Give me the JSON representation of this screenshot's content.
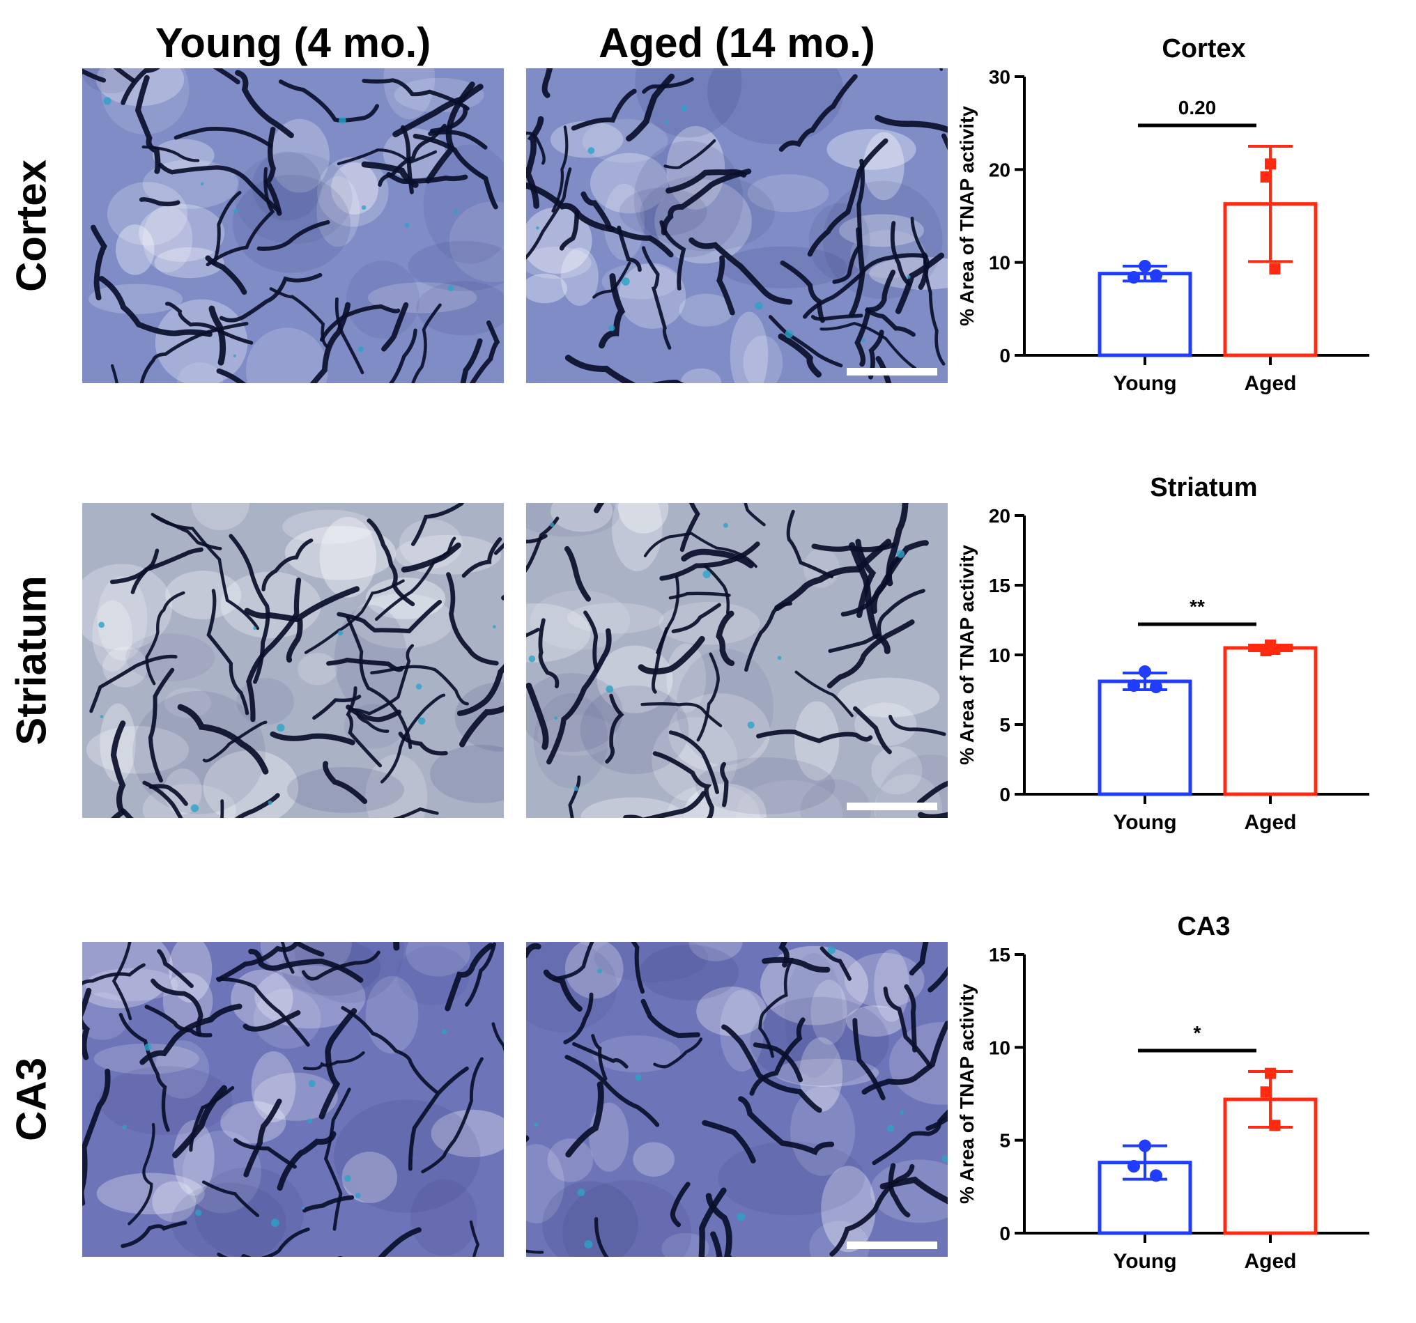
{
  "column_headers": {
    "young": "Young (4 mo.)",
    "aged": "Aged (14 mo.)"
  },
  "row_headers": [
    "Cortex",
    "Striatum",
    "CA3"
  ],
  "panels": [
    {
      "region": "Cortex",
      "tissue_tint": "#7f8cc6",
      "vessel_density": 0.55,
      "scale_bar": true
    },
    {
      "region": "Striatum",
      "tissue_tint": "#aab2c6",
      "vessel_density": 0.65,
      "scale_bar": true
    },
    {
      "region": "CA3",
      "tissue_tint": "#6d74b8",
      "vessel_density": 0.4,
      "scale_bar": true
    }
  ],
  "colors": {
    "young": "#1f3cff",
    "aged": "#ff2a10",
    "vessel": "#0a0f2a",
    "stat_bar": "#000000"
  },
  "chart_data": [
    {
      "type": "bar",
      "title": "Cortex",
      "categories": [
        "Young",
        "Aged"
      ],
      "ylabel": "% Area of TNAP activity",
      "ylim": [
        0,
        30
      ],
      "yticks": [
        0,
        10,
        20,
        30
      ],
      "means": [
        8.8,
        16.3
      ],
      "sd": [
        0.8,
        6.2
      ],
      "points": [
        [
          9.6,
          8.4,
          8.6
        ],
        [
          20.6,
          19.2,
          9.3
        ]
      ],
      "significance": "0.20"
    },
    {
      "type": "bar",
      "title": "Striatum",
      "categories": [
        "Young",
        "Aged"
      ],
      "ylabel": "% Area of TNAP activity",
      "ylim": [
        0,
        20
      ],
      "yticks": [
        0,
        5,
        10,
        15,
        20
      ],
      "means": [
        8.1,
        10.5
      ],
      "sd": [
        0.6,
        0.2
      ],
      "points": [
        [
          8.8,
          7.8,
          7.7
        ],
        [
          10.7,
          10.3,
          10.4
        ]
      ],
      "significance": "**"
    },
    {
      "type": "bar",
      "title": "CA3",
      "categories": [
        "Young",
        "Aged"
      ],
      "ylabel": "% Area of TNAP activity",
      "ylim": [
        0,
        15
      ],
      "yticks": [
        0,
        5,
        10,
        15
      ],
      "means": [
        3.8,
        7.2
      ],
      "sd": [
        0.9,
        1.5
      ],
      "points": [
        [
          4.7,
          3.6,
          3.1
        ],
        [
          8.6,
          7.6,
          5.8
        ]
      ],
      "significance": "*"
    }
  ]
}
